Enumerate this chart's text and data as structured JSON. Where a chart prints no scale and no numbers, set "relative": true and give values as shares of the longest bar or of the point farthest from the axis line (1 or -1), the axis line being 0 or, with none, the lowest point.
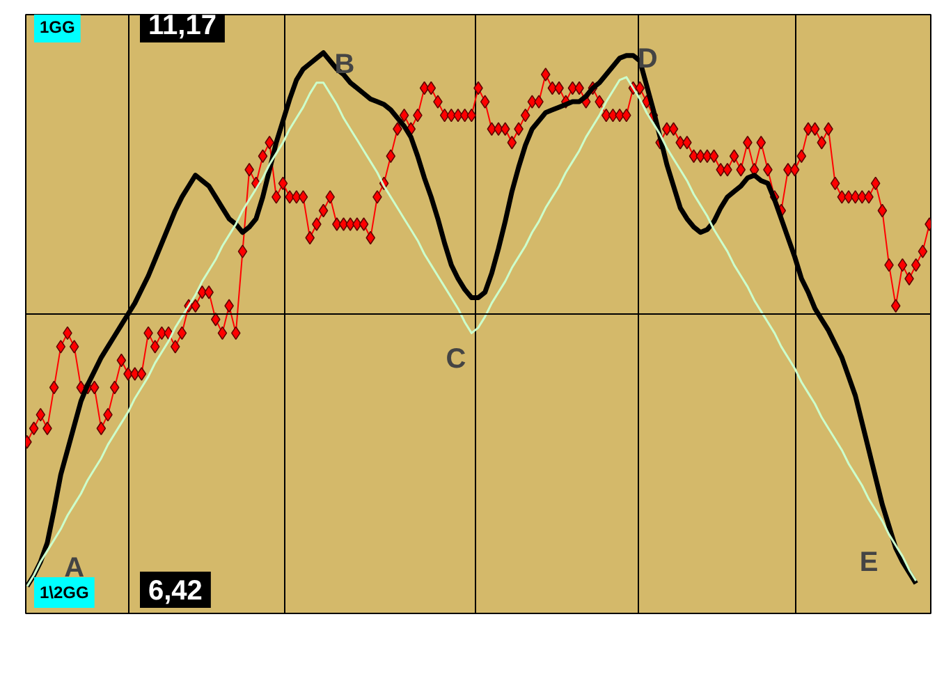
{
  "chart_data": {
    "type": "line",
    "relative": true,
    "grid": "x",
    "line_style": "solid",
    "categories": [
      null,
      null,
      null,
      null,
      null,
      null,
      null,
      null,
      null,
      null,
      null,
      null,
      null,
      null,
      null,
      null,
      null,
      null,
      null,
      null,
      null,
      null,
      null,
      null,
      null,
      null,
      null,
      null,
      null,
      null,
      null,
      null,
      null,
      null,
      null,
      null,
      null,
      null,
      null,
      null,
      null,
      null,
      null,
      null,
      null,
      null,
      null,
      null,
      null,
      null,
      null,
      null,
      null,
      null,
      null,
      null,
      null,
      null,
      null,
      null,
      null,
      null,
      null,
      null,
      null,
      null,
      null,
      null,
      null,
      null,
      null,
      null,
      null,
      null,
      null,
      null,
      null,
      null,
      null,
      null,
      null,
      null,
      null,
      null,
      null,
      null,
      null,
      null,
      null,
      null,
      null,
      null,
      null,
      null,
      null,
      null,
      null,
      null,
      null,
      null,
      null,
      null,
      null,
      null,
      null,
      null,
      null,
      null,
      null,
      null,
      null,
      null,
      null,
      null,
      null,
      null,
      null,
      null,
      null,
      null,
      null,
      null,
      null,
      null,
      null,
      null,
      null,
      null,
      null,
      null,
      null,
      null,
      null,
      null,
      null
    ],
    "series": [
      {
        "color": "#ff0000",
        "marker": "diamond",
        "values": [
          -0.47,
          -0.42,
          -0.37,
          -0.42,
          -0.27,
          -0.12,
          -0.07,
          -0.12,
          -0.27,
          -0.27,
          -0.27,
          -0.42,
          -0.37,
          -0.27,
          -0.17,
          -0.22,
          -0.22,
          -0.22,
          -0.07,
          -0.12,
          -0.07,
          -0.07,
          -0.12,
          -0.07,
          0.03,
          0.03,
          0.08,
          0.08,
          -0.02,
          -0.07,
          0.03,
          -0.07,
          0.23,
          0.53,
          0.48,
          0.58,
          0.63,
          0.43,
          0.48,
          0.43,
          0.43,
          0.43,
          0.28,
          0.33,
          0.38,
          0.43,
          0.33,
          0.33,
          0.33,
          0.33,
          0.33,
          0.28,
          0.43,
          0.48,
          0.58,
          0.68,
          0.73,
          0.68,
          0.73,
          0.83,
          0.83,
          0.78,
          0.73,
          0.73,
          0.73,
          0.73,
          0.73,
          0.83,
          0.78,
          0.68,
          0.68,
          0.68,
          0.63,
          0.68,
          0.73,
          0.78,
          0.78,
          0.88,
          0.83,
          0.83,
          0.78,
          0.83,
          0.83,
          0.78,
          0.83,
          0.78,
          0.73,
          0.73,
          0.73,
          0.73,
          0.83,
          0.83,
          0.78,
          0.73,
          0.63,
          0.68,
          0.68,
          0.63,
          0.63,
          0.58,
          0.58,
          0.58,
          0.58,
          0.53,
          0.53,
          0.58,
          0.53,
          0.63,
          0.53,
          0.63,
          0.53,
          0.43,
          0.38,
          0.53,
          0.53,
          0.58,
          0.68,
          0.68,
          0.63,
          0.68,
          0.48,
          0.43,
          0.43,
          0.43,
          0.43,
          0.43,
          0.48,
          0.38,
          0.18,
          0.03,
          0.18,
          0.13,
          0.18,
          0.23,
          0.33
        ]
      },
      {
        "color": "#000000",
        "marker": "none",
        "values": [
          -1.0,
          -0.96,
          -0.91,
          -0.84,
          -0.72,
          -0.59,
          -0.5,
          -0.41,
          -0.32,
          -0.26,
          -0.21,
          -0.16,
          -0.12,
          -0.08,
          -0.04,
          0.0,
          0.04,
          0.09,
          0.14,
          0.2,
          0.26,
          0.32,
          0.38,
          0.43,
          0.47,
          0.51,
          0.49,
          0.47,
          0.43,
          0.39,
          0.35,
          0.33,
          0.3,
          0.32,
          0.35,
          0.43,
          0.53,
          0.63,
          0.71,
          0.79,
          0.86,
          0.9,
          0.92,
          0.94,
          0.96,
          0.93,
          0.9,
          0.88,
          0.85,
          0.83,
          0.81,
          0.79,
          0.78,
          0.77,
          0.75,
          0.72,
          0.69,
          0.65,
          0.58,
          0.5,
          0.43,
          0.35,
          0.26,
          0.18,
          0.13,
          0.09,
          0.06,
          0.06,
          0.08,
          0.15,
          0.24,
          0.34,
          0.45,
          0.54,
          0.62,
          0.68,
          0.71,
          0.74,
          0.75,
          0.76,
          0.77,
          0.78,
          0.78,
          0.8,
          0.83,
          0.85,
          0.88,
          0.91,
          0.94,
          0.95,
          0.95,
          0.93,
          0.84,
          0.75,
          0.65,
          0.55,
          0.47,
          0.39,
          0.35,
          0.32,
          0.3,
          0.31,
          0.34,
          0.39,
          0.43,
          0.45,
          0.47,
          0.5,
          0.51,
          0.49,
          0.48,
          0.42,
          0.35,
          0.28,
          0.21,
          0.13,
          0.08,
          0.02,
          -0.02,
          -0.06,
          -0.11,
          -0.16,
          -0.23,
          -0.3,
          -0.4,
          -0.5,
          -0.6,
          -0.7,
          -0.78,
          -0.86,
          -0.91,
          -0.95,
          -0.99,
          null,
          null
        ]
      },
      {
        "color": "#ccffcc",
        "marker": "none",
        "values": [
          -1.0,
          -0.96,
          -0.91,
          -0.87,
          -0.83,
          -0.79,
          -0.74,
          -0.7,
          -0.66,
          -0.61,
          -0.57,
          -0.53,
          -0.48,
          -0.44,
          -0.4,
          -0.36,
          -0.31,
          -0.27,
          -0.23,
          -0.18,
          -0.14,
          -0.1,
          -0.05,
          -0.01,
          0.03,
          0.07,
          0.12,
          0.16,
          0.2,
          0.25,
          0.29,
          0.33,
          0.38,
          0.42,
          0.46,
          0.5,
          0.55,
          0.59,
          0.63,
          0.68,
          0.72,
          0.76,
          0.81,
          0.85,
          0.85,
          0.81,
          0.77,
          0.72,
          0.68,
          0.64,
          0.6,
          0.56,
          0.52,
          0.47,
          0.43,
          0.39,
          0.35,
          0.31,
          0.27,
          0.22,
          0.18,
          0.14,
          0.1,
          0.06,
          0.02,
          -0.03,
          -0.07,
          -0.05,
          -0.01,
          0.04,
          0.08,
          0.12,
          0.17,
          0.21,
          0.25,
          0.3,
          0.34,
          0.39,
          0.43,
          0.47,
          0.52,
          0.56,
          0.6,
          0.65,
          0.69,
          0.73,
          0.78,
          0.82,
          0.86,
          0.87,
          0.83,
          0.79,
          0.74,
          0.7,
          0.66,
          0.61,
          0.57,
          0.53,
          0.49,
          0.44,
          0.4,
          0.36,
          0.31,
          0.27,
          0.23,
          0.18,
          0.14,
          0.1,
          0.05,
          0.01,
          -0.03,
          -0.07,
          -0.12,
          -0.16,
          -0.2,
          -0.25,
          -0.29,
          -0.33,
          -0.38,
          -0.42,
          -0.46,
          -0.5,
          -0.55,
          -0.59,
          -0.63,
          -0.68,
          -0.72,
          -0.76,
          -0.81,
          -0.85,
          -0.89,
          -0.94,
          -0.98,
          null,
          null
        ]
      }
    ],
    "annotations": [
      "A",
      "B",
      "C",
      "D",
      "E",
      "1GG",
      "11,17",
      "1\\2GG",
      "6,42"
    ]
  }
}
